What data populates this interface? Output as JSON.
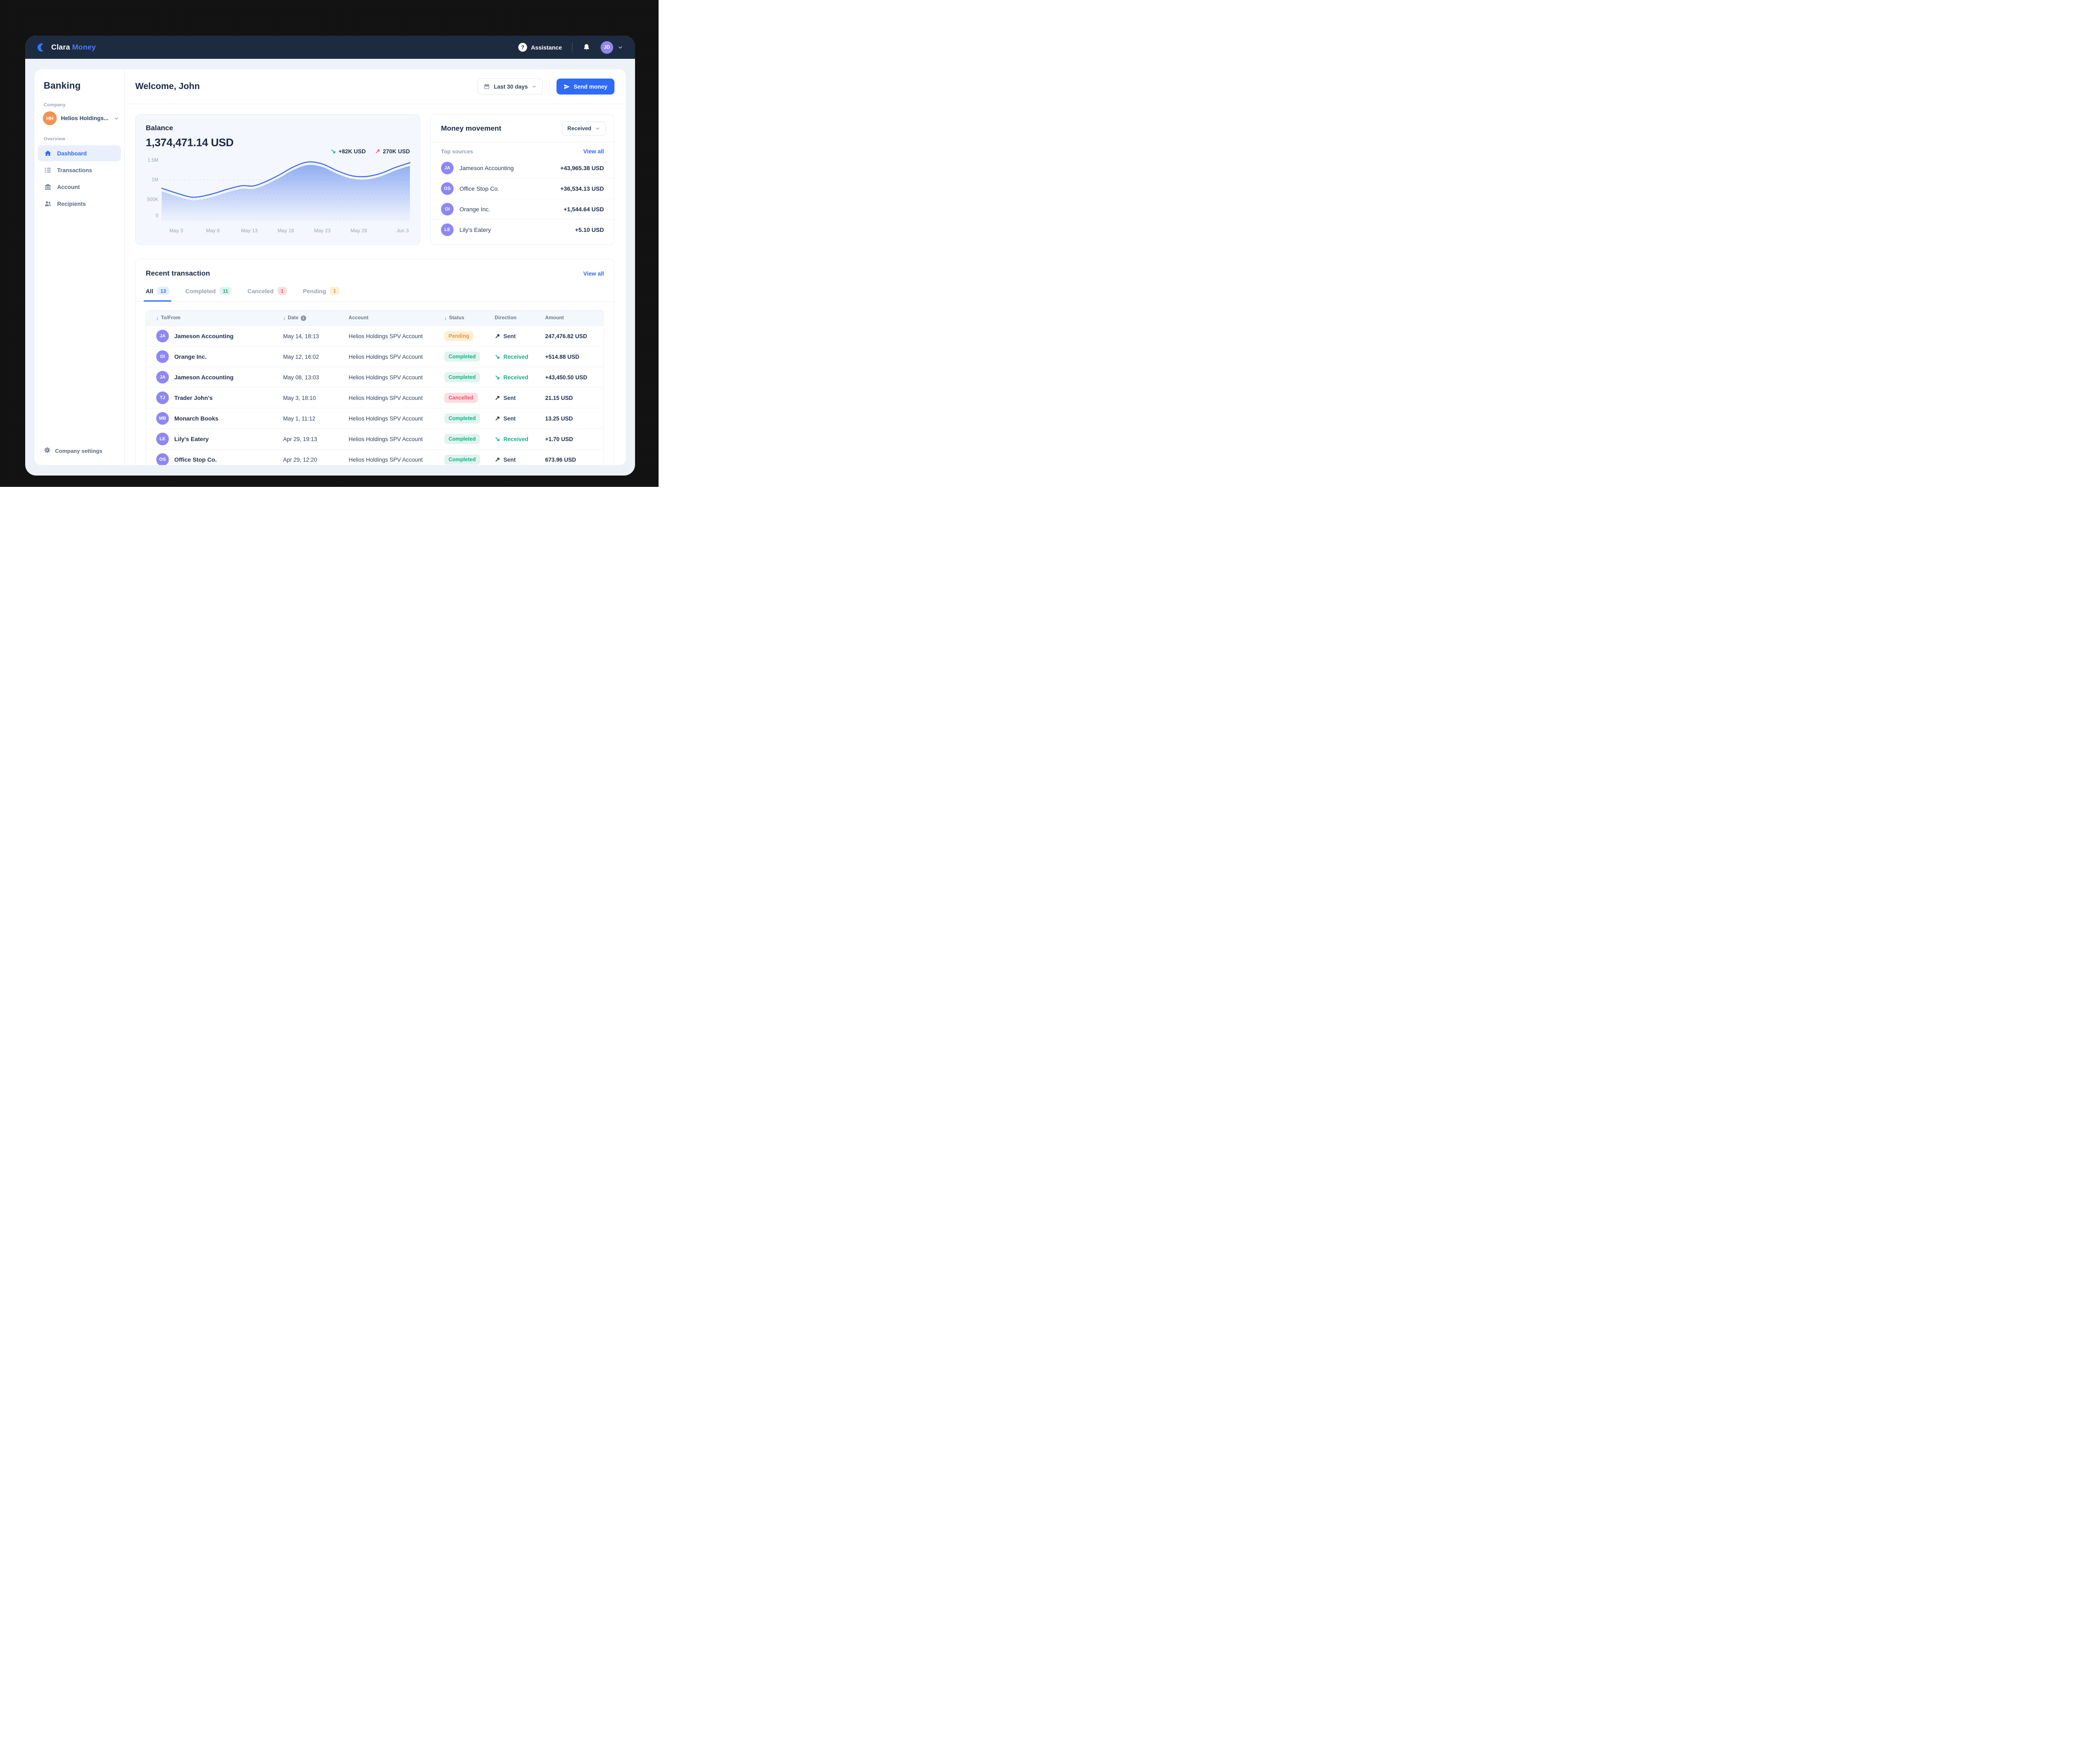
{
  "navbar": {
    "brand_primary": "Clara",
    "brand_secondary": "Money",
    "assistance": "Assistance",
    "avatar_initials": "JD"
  },
  "sidebar": {
    "title": "Banking",
    "company_label": "Company",
    "company_initials": "HH",
    "company_name": "Helios Holdings...",
    "overview_label": "Overview",
    "items": [
      {
        "label": "Dashboard",
        "icon": "home-icon",
        "active": true
      },
      {
        "label": "Transactions",
        "icon": "list-icon",
        "active": false
      },
      {
        "label": "Account",
        "icon": "bank-icon",
        "active": false
      },
      {
        "label": "Recipients",
        "icon": "people-icon",
        "active": false
      }
    ],
    "footer_label": "Company settings"
  },
  "header": {
    "title": "Welcome, John",
    "date_range": "Last 30 days",
    "send_money": "Send money"
  },
  "balance": {
    "title": "Balance",
    "amount": "1,374,471.14 USD",
    "received_delta": "+82K USD",
    "sent_delta": "270K USD"
  },
  "chart_data": {
    "type": "area",
    "title": "Balance over last 30 days",
    "x_domain": [
      0,
      34
    ],
    "y_domain": [
      0,
      1500000
    ],
    "y_ticks": [
      {
        "label": "1.5M",
        "value": 1500000
      },
      {
        "label": "1M",
        "value": 1000000
      },
      {
        "label": "500K",
        "value": 500000
      },
      {
        "label": "0",
        "value": 0
      }
    ],
    "x_ticks": [
      {
        "label": "May 3",
        "day": 2
      },
      {
        "label": "May 8",
        "day": 7
      },
      {
        "label": "May 13",
        "day": 12
      },
      {
        "label": "May 18",
        "day": 17
      },
      {
        "label": "May 23",
        "day": 22
      },
      {
        "label": "May 28",
        "day": 27
      },
      {
        "label": "Jun 3",
        "day": 33
      }
    ],
    "points": [
      [
        0,
        780000
      ],
      [
        3.5,
        575000
      ],
      [
        5,
        560000
      ],
      [
        7,
        640000
      ],
      [
        9,
        755000
      ],
      [
        11,
        845000
      ],
      [
        12.5,
        838000
      ],
      [
        14,
        930000
      ],
      [
        16,
        1110000
      ],
      [
        18,
        1320000
      ],
      [
        20,
        1450000
      ],
      [
        22,
        1400000
      ],
      [
        24,
        1230000
      ],
      [
        26,
        1100000
      ],
      [
        28,
        1080000
      ],
      [
        30,
        1160000
      ],
      [
        32,
        1310000
      ],
      [
        34,
        1430000
      ]
    ],
    "grid": "horizontal dashed at 1M, 500K, 0",
    "legend": "none",
    "line_color": "#3a6cf3",
    "fill_top": "rgba(111,148,240,0.75)",
    "fill_bottom": "rgba(111,148,240,0.02)"
  },
  "money_movement": {
    "title": "Money movement",
    "filter_value": "Received",
    "subtitle": "Top sources",
    "view_all": "View all",
    "sources": [
      {
        "initials": "JA",
        "name": "Jameson Accounting",
        "amount": "+43,965.38 USD"
      },
      {
        "initials": "OS",
        "name": "Office Stop Co.",
        "amount": "+36,534.13 USD"
      },
      {
        "initials": "OI",
        "name": "Orange Inc.",
        "amount": "+1,544.64 USD"
      },
      {
        "initials": "LE",
        "name": "Lily's Eatery",
        "amount": "+5.10 USD"
      }
    ]
  },
  "transactions": {
    "title": "Recent transaction",
    "view_all": "View all",
    "tabs": [
      {
        "label": "All",
        "count": "13",
        "style": "blue",
        "active": true
      },
      {
        "label": "Completed",
        "count": "11",
        "style": "green",
        "active": false
      },
      {
        "label": "Canceled",
        "count": "1",
        "style": "red",
        "active": false
      },
      {
        "label": "Pending",
        "count": "1",
        "style": "orange",
        "active": false
      }
    ],
    "columns": [
      {
        "label": "To/From",
        "sorted": true
      },
      {
        "label": "Date",
        "sorted": true,
        "info": true
      },
      {
        "label": "Account"
      },
      {
        "label": "Status",
        "sorted": true
      },
      {
        "label": "Direction"
      },
      {
        "label": "Amount"
      }
    ],
    "rows": [
      {
        "initials": "JA",
        "name": "Jameson Accounting",
        "date": "May 14, 18:13",
        "account": "Helios Holdings SPV Account",
        "status": "Pending",
        "status_type": "pending",
        "direction": "Sent",
        "direction_type": "sent",
        "amount": "247,476.82 USD"
      },
      {
        "initials": "OI",
        "name": "Orange Inc.",
        "date": "May 12, 16:02",
        "account": "Helios Holdings SPV Account",
        "status": "Completed",
        "status_type": "completed",
        "direction": "Received",
        "direction_type": "received",
        "amount": "+514.88 USD"
      },
      {
        "initials": "JA",
        "name": "Jameson Accounting",
        "date": "May 08, 13:03",
        "account": "Helios Holdings SPV Account",
        "status": "Completed",
        "status_type": "completed",
        "direction": "Received",
        "direction_type": "received",
        "amount": "+43,450.50 USD"
      },
      {
        "initials": "TJ",
        "name": "Trader John's",
        "date": "May 3, 18:10",
        "account": "Helios Holdings SPV Account",
        "status": "Cancelled",
        "status_type": "cancelled",
        "direction": "Sent",
        "direction_type": "sent",
        "amount": "21.15 USD"
      },
      {
        "initials": "MB",
        "name": "Monarch Books",
        "date": "May 1, 11:12",
        "account": "Helios Holdings SPV Account",
        "status": "Completed",
        "status_type": "completed",
        "direction": "Sent",
        "direction_type": "sent",
        "amount": "13.25 USD"
      },
      {
        "initials": "LE",
        "name": "Lily's Eatery",
        "date": "Apr 29, 19:13",
        "account": "Helios Holdings SPV Account",
        "status": "Completed",
        "status_type": "completed",
        "direction": "Received",
        "direction_type": "received",
        "amount": "+1.70 USD"
      },
      {
        "initials": "OS",
        "name": "Office Stop Co.",
        "date": "Apr 29, 12:20",
        "account": "Helios Holdings SPV Account",
        "status": "Completed",
        "status_type": "completed",
        "direction": "Sent",
        "direction_type": "sent",
        "amount": "673.96 USD"
      }
    ]
  },
  "colors": {
    "navbar_bg": "#1d2b40",
    "accent_blue": "#2e6bf6",
    "teal": "#12b287",
    "red": "#ee5168",
    "orange": "#f0913e",
    "purple_avatar": "#8e87f3",
    "orange_avatar": "#f5914e",
    "app_bg": "#edf2f9",
    "balance_card_bg": "#f4f7fd"
  }
}
